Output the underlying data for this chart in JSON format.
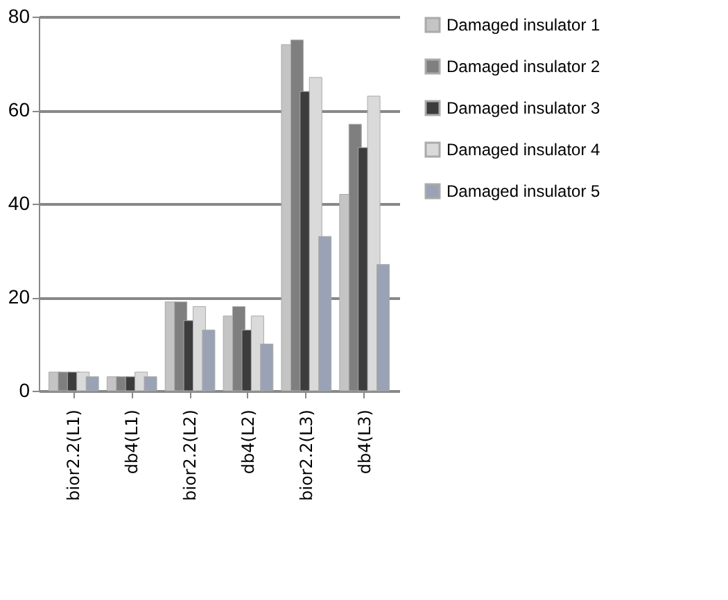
{
  "chart_data": {
    "type": "bar",
    "categories": [
      "bior2.2(L1)",
      "db4(L1)",
      "bior2.2(L2)",
      "db4(L2)",
      "bior2.2(L3)",
      "db4(L3)"
    ],
    "series": [
      {
        "name": "Damaged insulator 1",
        "color": "#c4c4c4",
        "values": [
          4,
          3,
          19,
          16,
          74,
          42
        ]
      },
      {
        "name": "Damaged insulator 2",
        "color": "#7f7f7f",
        "values": [
          4,
          3,
          19,
          18,
          75,
          57
        ]
      },
      {
        "name": "Damaged insulator 3",
        "color": "#3c3c3c",
        "values": [
          4,
          3,
          15,
          13,
          64,
          52
        ]
      },
      {
        "name": "Damaged insulator 4",
        "color": "#dadada",
        "values": [
          4,
          4,
          18,
          16,
          67,
          63
        ]
      },
      {
        "name": "Damaged insulator 5",
        "color": "#9aa3b5",
        "values": [
          3,
          3,
          13,
          10,
          33,
          27
        ]
      }
    ],
    "ylim": [
      0,
      80
    ],
    "yticks": [
      0,
      20,
      40,
      60,
      80
    ],
    "grid": "y",
    "legend": "right"
  }
}
